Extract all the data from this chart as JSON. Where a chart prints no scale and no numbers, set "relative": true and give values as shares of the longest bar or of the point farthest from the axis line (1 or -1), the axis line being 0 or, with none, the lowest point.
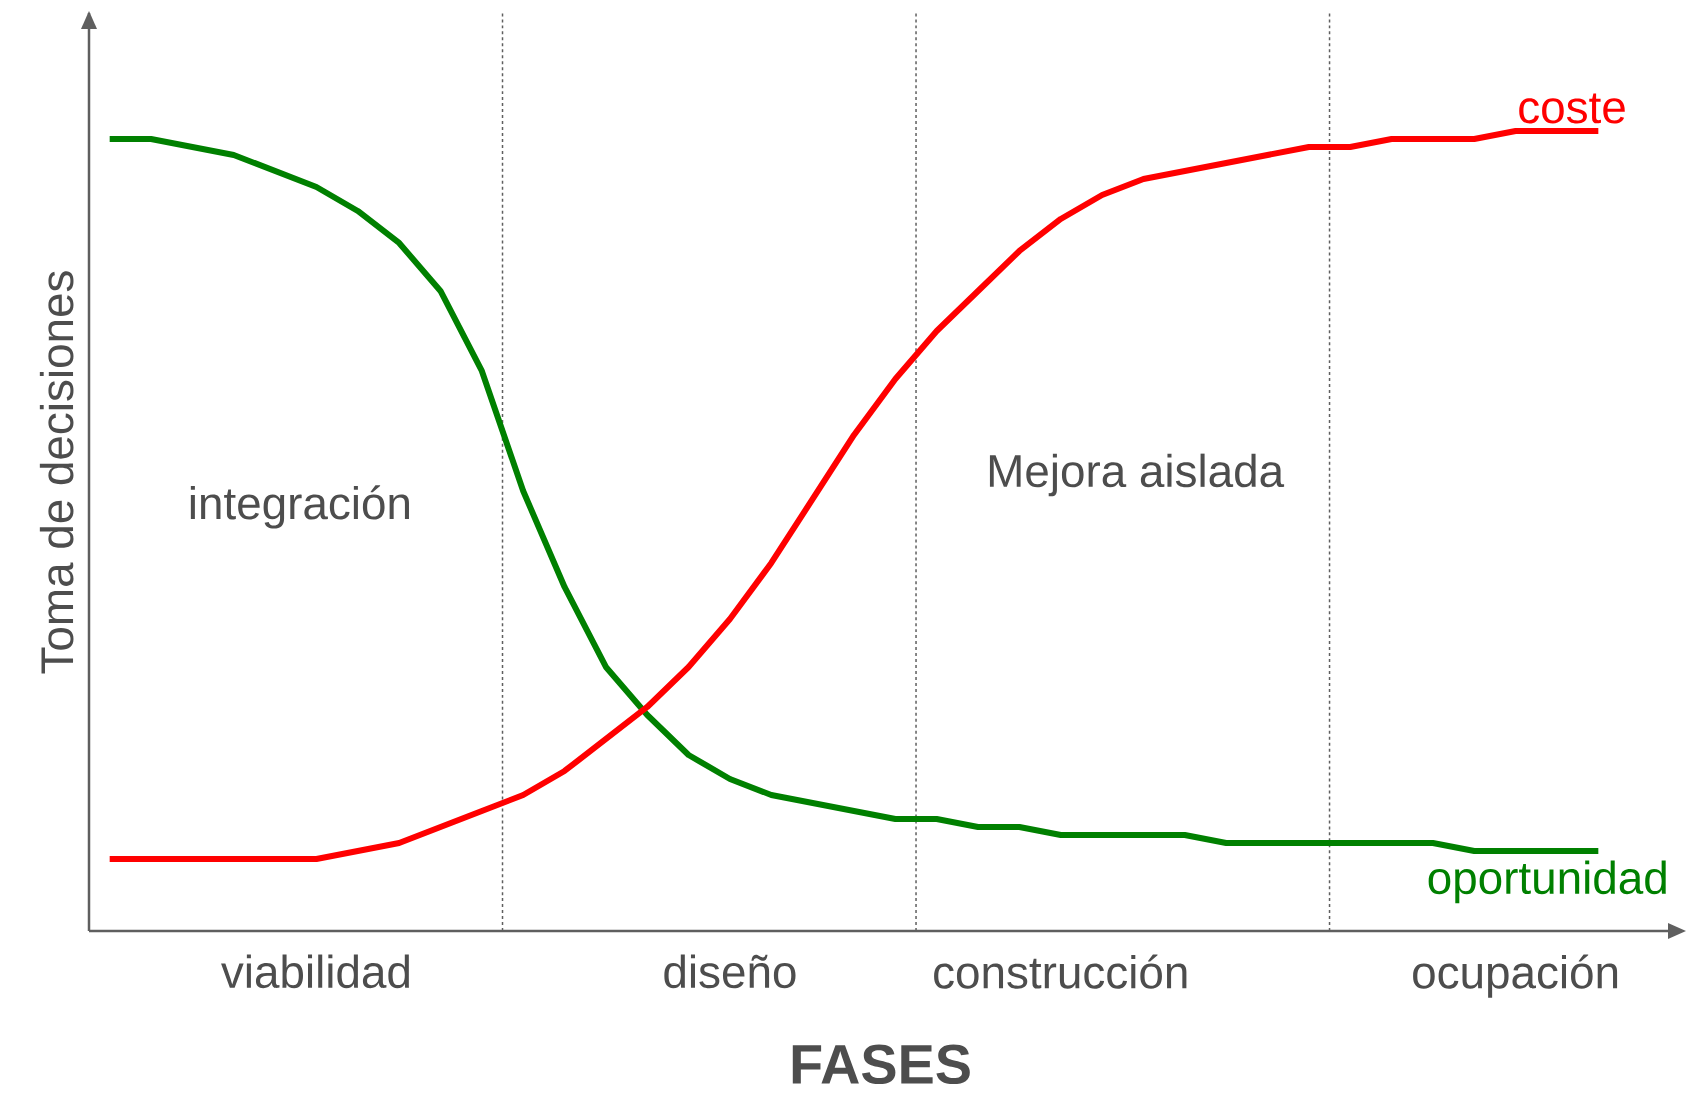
{
  "chart_data": {
    "type": "line",
    "relative": true,
    "xlabel": "**FASES**",
    "ylabel": "Toma de decisiones",
    "categories": [
      null,
      null,
      null,
      null,
      null,
      "viabilidad",
      null,
      null,
      null,
      null,
      null,
      null,
      null,
      null,
      null,
      "diseño",
      null,
      null,
      null,
      null,
      null,
      null,
      null,
      "construcción",
      null,
      null,
      null,
      null,
      null,
      null,
      null,
      null,
      null,
      null,
      "ocupación",
      null,
      null
    ],
    "annotations": [
      "integración",
      "Mejora aislada"
    ],
    "series": [
      {
        "name": "oportunidad",
        "color": "#008000",
        "values": [
          0.99,
          0.99,
          0.98,
          0.97,
          0.95,
          0.93,
          0.9,
          0.86,
          0.8,
          0.7,
          0.55,
          0.43,
          0.33,
          0.27,
          0.22,
          0.19,
          0.17,
          0.16,
          0.15,
          0.14,
          0.14,
          0.13,
          0.13,
          0.12,
          0.12,
          0.12,
          0.12,
          0.11,
          0.11,
          0.11,
          0.11,
          0.11,
          0.11,
          0.1,
          0.1,
          0.1,
          0.1
        ]
      },
      {
        "name": "coste",
        "color": "#ff0000",
        "values": [
          0.09,
          0.09,
          0.09,
          0.09,
          0.09,
          0.09,
          0.1,
          0.11,
          0.13,
          0.15,
          0.17,
          0.2,
          0.24,
          0.28,
          0.33,
          0.39,
          0.46,
          0.54,
          0.62,
          0.69,
          0.75,
          0.8,
          0.85,
          0.89,
          0.92,
          0.94,
          0.95,
          0.96,
          0.97,
          0.98,
          0.98,
          0.99,
          0.99,
          0.99,
          1.0,
          1.0,
          1.0
        ]
      }
    ]
  }
}
